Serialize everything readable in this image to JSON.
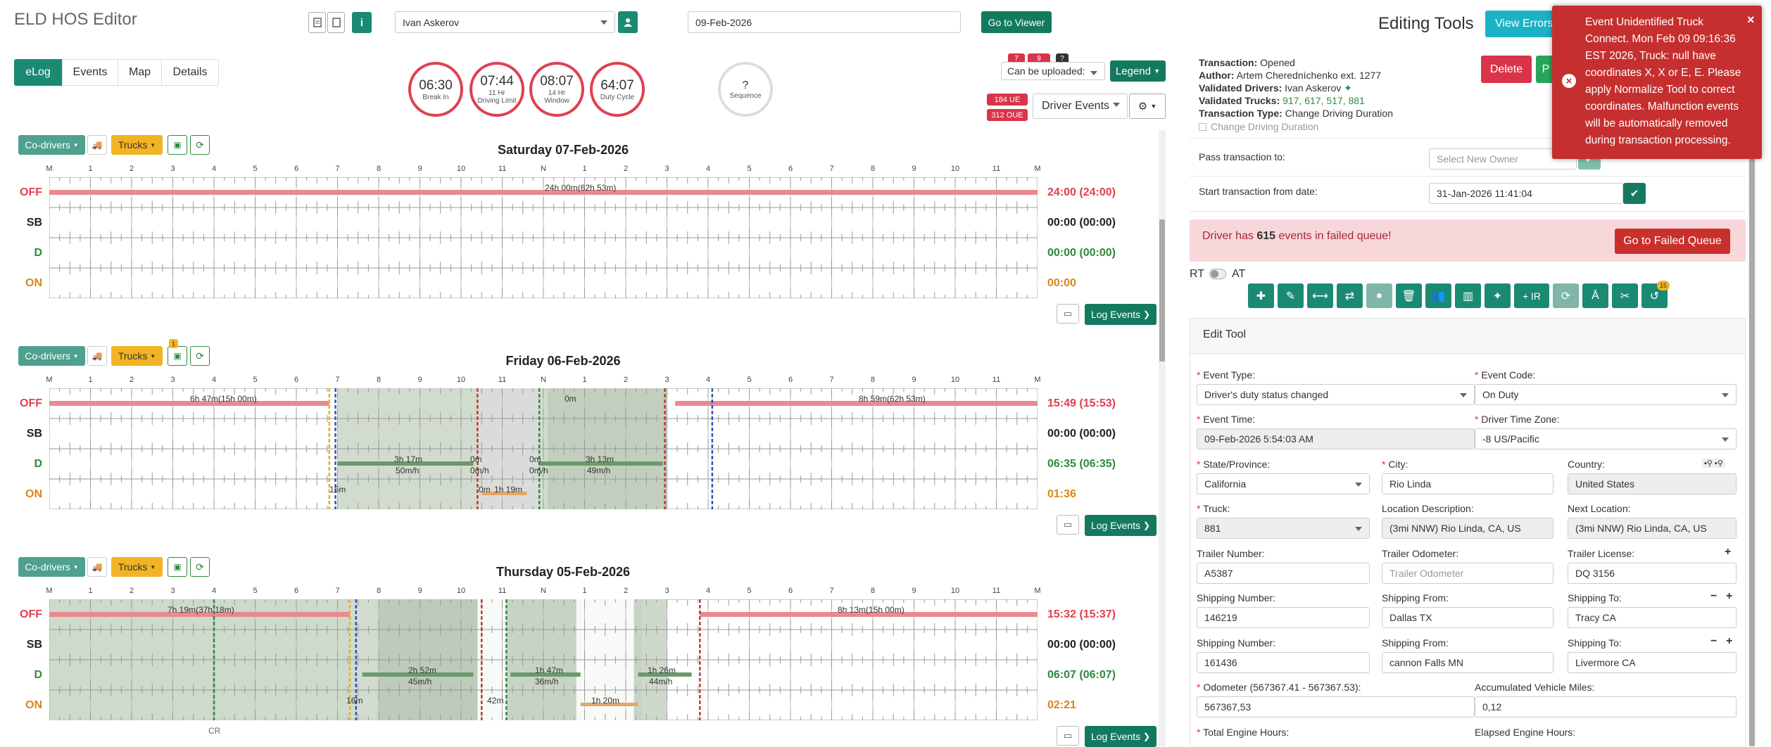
{
  "app": {
    "title": "ELD HOS Editor"
  },
  "header": {
    "driver_value": "Ivan Askerov",
    "date_value": "09-Feb-2026",
    "go_viewer": "Go to Viewer",
    "editing_tools": "Editing Tools",
    "view_errors": "View Errors"
  },
  "tabs": [
    "eLog",
    "Events",
    "Map",
    "Details"
  ],
  "gauges": [
    {
      "value": "06:30",
      "label": "Break In"
    },
    {
      "value": "07:44",
      "label": "11 Hr\nDriving Limit"
    },
    {
      "value": "08:07",
      "label": "14 Hr\nWindow"
    },
    {
      "value": "64:07",
      "label": "Duty Cycle"
    }
  ],
  "sequence": {
    "value": "?",
    "label": "Sequence"
  },
  "badges": {
    "b1": "7",
    "b2": "9",
    "b3": "?",
    "ue": "184 UE",
    "oue": "312 OUE"
  },
  "upload_select": "Can be uploaded:",
  "legend": "Legend",
  "driver_events": "Driver Events",
  "day_controls": {
    "codrivers": "Co-drivers",
    "trucks": "Trucks",
    "log_events": "Log Events"
  },
  "hour_labels": [
    "M",
    "1",
    "2",
    "3",
    "4",
    "5",
    "6",
    "7",
    "8",
    "9",
    "10",
    "11",
    "N",
    "1",
    "2",
    "3",
    "4",
    "5",
    "6",
    "7",
    "8",
    "9",
    "10",
    "11",
    "M"
  ],
  "status_labels": [
    "OFF",
    "SB",
    "D",
    "ON"
  ],
  "days": [
    {
      "title": "Saturday 07-Feb-2026",
      "totals": [
        "24:00 (24:00)",
        "00:00 (00:00)",
        "00:00 (00:00)",
        "00:00"
      ],
      "annot": [
        {
          "text": "24h 00m(62h 53m)"
        }
      ]
    },
    {
      "title": "Friday 06-Feb-2026",
      "badge": "1",
      "totals": [
        "15:49 (15:53)",
        "00:00 (00:00)",
        "06:35 (06:35)",
        "01:36"
      ],
      "annot": [
        {
          "text": "6h 47m(15h 00m)"
        },
        {
          "text": "0m"
        },
        {
          "text": "8h 59m(62h 53m)"
        },
        {
          "text": "3h 17m"
        },
        {
          "text": "50m/h"
        },
        {
          "text": "0m"
        },
        {
          "text": "0m/h"
        },
        {
          "text": "0m"
        },
        {
          "text": "0m/h"
        },
        {
          "text": "3h 13m"
        },
        {
          "text": "49m/h"
        },
        {
          "text": "0m"
        },
        {
          "text": "1h 19m"
        },
        {
          "text": "15m"
        }
      ]
    },
    {
      "title": "Thursday 05-Feb-2026",
      "totals": [
        "15:32 (15:37)",
        "00:00 (00:00)",
        "06:07 (06:07)",
        "02:21"
      ],
      "annot": [
        {
          "text": "7h 19m(37h 18m)"
        },
        {
          "text": "8h 13m(15h 00m)"
        },
        {
          "text": "2h 52m"
        },
        {
          "text": "45m/h"
        },
        {
          "text": "1h 47m"
        },
        {
          "text": "36m/h"
        },
        {
          "text": "1h 26m"
        },
        {
          "text": "44m/h"
        },
        {
          "text": "42m"
        },
        {
          "text": "1h 20m"
        },
        {
          "text": "16m"
        },
        {
          "text": "CR"
        }
      ]
    }
  ],
  "transaction": {
    "status_label": "Transaction:",
    "status": "Opened",
    "author_label": "Author:",
    "author": "Artem Cheredníchenko ext. 1277",
    "drivers_label": "Validated Drivers:",
    "drivers": "Ivan Askerov",
    "trucks_label": "Validated Trucks:",
    "trucks": "917, 617, 517, 881",
    "type_label": "Transaction Type:",
    "type": "Change Driving Duration",
    "checkbox": "Change Driving Duration",
    "delete": "Delete",
    "p": "P",
    "pass_label": "Pass transaction to:",
    "pass_placeholder": "Select New Owner",
    "start_label": "Start transaction from date:",
    "start_value": "31-Jan-2026 11:41:04"
  },
  "alert": {
    "pre": "Driver has ",
    "count": "615",
    "post": " events in failed queue!",
    "button": "Go to Failed Queue"
  },
  "toggle": {
    "rt": "RT",
    "at": "AT"
  },
  "toolbar": {
    "ir": "+ IR",
    "badge": "15"
  },
  "edit_tool": {
    "title": "Edit Tool",
    "event_type_label": "Event Type:",
    "event_type": "Driver's duty status changed",
    "event_code_label": "Event Code:",
    "event_code": "On Duty",
    "event_time_label": "Event Time:",
    "event_time": "09-Feb-2026 5:54:03 AM",
    "tz_label": "Driver Time Zone:",
    "tz": "-8 US/Pacific",
    "state_label": "State/Province:",
    "state": "California",
    "city_label": "City:",
    "city": "Rio Linda",
    "country_label": "Country:",
    "country": "United States",
    "truck_label": "Truck:",
    "truck": "881",
    "loc_desc_label": "Location Description:",
    "loc_desc": "(3mi NNW) Rio Linda, CA, US",
    "next_loc_label": "Next Location:",
    "next_loc": "(3mi NNW) Rio Linda, CA, US",
    "trailer_num_label": "Trailer Number:",
    "trailer_num": "A5387",
    "trailer_odo_label": "Trailer Odometer:",
    "trailer_odo_placeholder": "Trailer Odometer",
    "trailer_lic_label": "Trailer License:",
    "trailer_lic": "DQ 3156",
    "ship1_num_label": "Shipping Number:",
    "ship1_num": "146219",
    "ship1_from_label": "Shipping From:",
    "ship1_from": "Dallas TX",
    "ship1_to_label": "Shipping To:",
    "ship1_to": "Tracy CA",
    "ship2_num_label": "Shipping Number:",
    "ship2_num": "161436",
    "ship2_from_label": "Shipping From:",
    "ship2_from": "cannon Falls MN",
    "ship2_to_label": "Shipping To:",
    "ship2_to": "Livermore CA",
    "odo_label": "Odometer (567367.41 - 567367.53):",
    "odo": "567367,53",
    "acc_label": "Accumulated Vehicle Miles:",
    "acc": "0,12",
    "eng_label": "Total Engine Hours:",
    "elapsed_label": "Elapsed Engine Hours:"
  },
  "toast": {
    "text": "Event Unidentified Truck Connect. Mon Feb 09 09:16:36 EST 2026, Truck: null have coordinates X, X or E, E. Please apply Normalize Tool to correct coordinates. Malfunction events will be automatically removed during transaction processing."
  },
  "colors": {
    "teal": "#1a8a73",
    "off": "#e04050",
    "sb": "#222222",
    "d": "#2e8b3e",
    "on": "#d8871c",
    "toast": "#c62f2f"
  }
}
